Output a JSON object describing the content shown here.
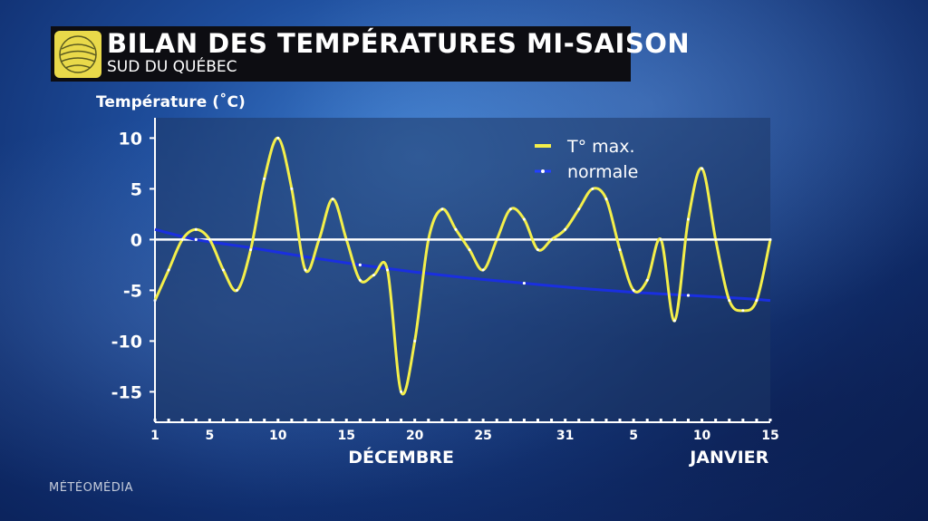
{
  "header": {
    "title": "BILAN DES TEMPÉRATURES MI-SAISON",
    "subtitle": "SUD DU QUÉBEC",
    "logo_icon": "globe-logo-icon"
  },
  "footer": {
    "brand": "MÉTÉOMÉDIA"
  },
  "colors": {
    "max_line": "#f4ef4a",
    "normal_line": "#1a2fe0",
    "zero_line": "#ffffff",
    "plot_bg": "#1e3764"
  },
  "chart_data": {
    "type": "line",
    "ylabel": "Température (˚C)",
    "ylim": [
      -18,
      12
    ],
    "yticks": [
      10,
      5,
      0,
      -5,
      -10,
      -15
    ],
    "xticks": [
      {
        "day": 1,
        "label": "1"
      },
      {
        "day": 5,
        "label": "5"
      },
      {
        "day": 10,
        "label": "10"
      },
      {
        "day": 15,
        "label": "15"
      },
      {
        "day": 20,
        "label": "20"
      },
      {
        "day": 25,
        "label": "25"
      },
      {
        "day": 31,
        "label": "31"
      },
      {
        "day": 36,
        "label": "5"
      },
      {
        "day": 41,
        "label": "10"
      },
      {
        "day": 46,
        "label": "15"
      }
    ],
    "months": [
      {
        "label": "DÉCEMBRE",
        "center_day": 19
      },
      {
        "label": "JANVIER",
        "center_day": 43
      }
    ],
    "xlim": [
      1,
      46
    ],
    "legend": {
      "position": "top-right"
    },
    "series": [
      {
        "name": "T° max.",
        "x": [
          1,
          2,
          3,
          4,
          5,
          6,
          7,
          8,
          9,
          10,
          11,
          12,
          13,
          14,
          15,
          16,
          17,
          18,
          19,
          20,
          21,
          22,
          23,
          24,
          25,
          26,
          27,
          28,
          29,
          30,
          31,
          32,
          33,
          34,
          35,
          36,
          37,
          38,
          39,
          40,
          41,
          42,
          43,
          44,
          45,
          46
        ],
        "values": [
          -6,
          -3,
          0,
          1,
          0,
          -3,
          -5,
          -1,
          6,
          10,
          5,
          -3,
          0,
          4,
          0,
          -4,
          -3.5,
          -3,
          -15,
          -10,
          0,
          3,
          1,
          -1,
          -3,
          0,
          3,
          2,
          -1,
          0,
          1,
          3,
          5,
          4,
          -1,
          -5,
          -4,
          0,
          -8,
          2,
          7,
          0,
          -6,
          -7,
          -6,
          0
        ]
      },
      {
        "name": "normale",
        "x": [
          1,
          4,
          8,
          12,
          16,
          20,
          24,
          28,
          32,
          36,
          40,
          44,
          46
        ],
        "values": [
          1,
          0,
          -0.8,
          -1.7,
          -2.5,
          -3.2,
          -3.8,
          -4.3,
          -4.8,
          -5.2,
          -5.5,
          -5.8,
          -6
        ]
      }
    ],
    "zero_line": true
  }
}
